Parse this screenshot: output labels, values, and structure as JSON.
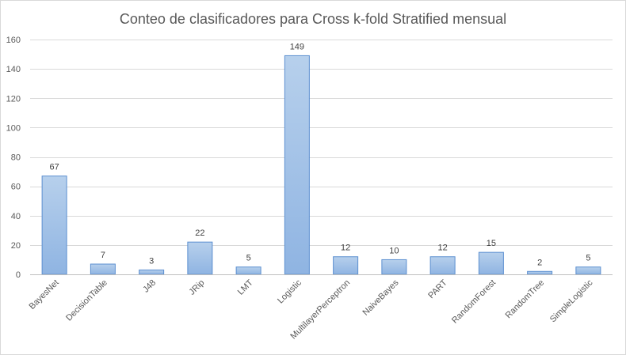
{
  "chart_data": {
    "type": "bar",
    "title": "Conteo de clasificadores para Cross k-fold Stratified mensual",
    "xlabel": "",
    "ylabel": "",
    "categories": [
      "BayesNet",
      "DecisionTable",
      "J48",
      "JRip",
      "LMT",
      "Logistic",
      "MultilayerPerceptron",
      "NaiveBayes",
      "PART",
      "RandomForest",
      "RandomTree",
      "SimpleLogistic"
    ],
    "values": [
      67,
      7,
      3,
      22,
      5,
      149,
      12,
      10,
      12,
      15,
      2,
      5
    ],
    "ylim": [
      0,
      160
    ],
    "yticks": [
      0,
      20,
      40,
      60,
      80,
      100,
      120,
      140,
      160
    ],
    "grid": true,
    "legend": "none",
    "colors": {
      "bar_top": "#b7d0ec",
      "bar_bottom": "#8fb4e2",
      "bar_border": "#5b8fd0"
    }
  }
}
